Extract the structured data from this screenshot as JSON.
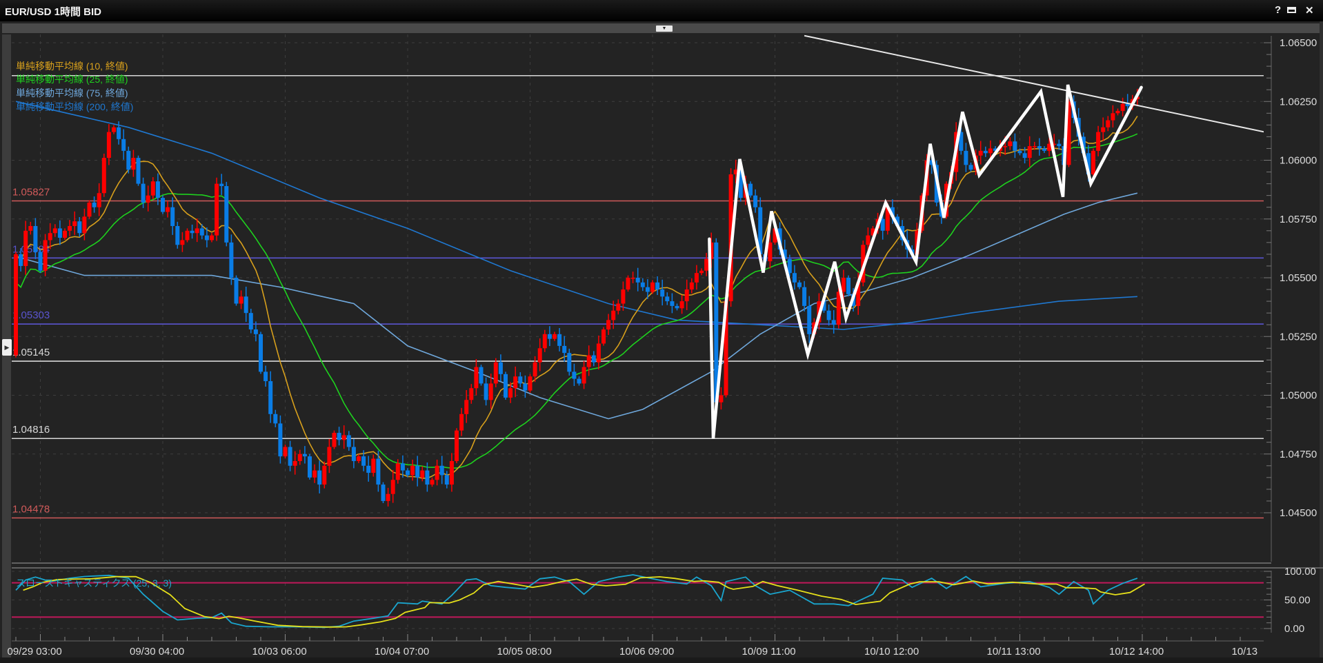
{
  "window": {
    "title": "EUR/USD 1時間 BID",
    "help_label": "?",
    "close_label": "✕",
    "icons": [
      "help-icon",
      "maximize-icon",
      "close-icon",
      "collapse-arrow-icon",
      "expand-arrow-icon"
    ]
  },
  "legend": [
    {
      "label": "単純移動平均線 (10, 終値)",
      "color": "#d8a01c"
    },
    {
      "label": "単純移動平均線 (25, 終値)",
      "color": "#1ed21e"
    },
    {
      "label": "単純移動平均線 (75, 終値)",
      "color": "#6fa8dc"
    },
    {
      "label": "単純移動平均線 (200, 終値)",
      "color": "#1f78d1"
    }
  ],
  "stochastic": {
    "label": "スローストキャスティクス (25, 3, 3)",
    "k_color": "#1aa6cf",
    "d_color": "#e6e01a",
    "level_color": "#c0195a",
    "levels": [
      80,
      20
    ],
    "ylim": [
      0,
      100
    ],
    "yticks": [
      "100.00",
      "50.00",
      "0.00"
    ],
    "k": [
      [
        0,
        67
      ],
      [
        2,
        85
      ],
      [
        4,
        90
      ],
      [
        7,
        82
      ],
      [
        11,
        88
      ],
      [
        14,
        91
      ],
      [
        19,
        93
      ],
      [
        23,
        88
      ],
      [
        26,
        60
      ],
      [
        30,
        30
      ],
      [
        33,
        15
      ],
      [
        37,
        18
      ],
      [
        40,
        19
      ],
      [
        42,
        27
      ],
      [
        44,
        10
      ],
      [
        47,
        4
      ],
      [
        52,
        3
      ],
      [
        57,
        3
      ],
      [
        63,
        2
      ],
      [
        66,
        4
      ],
      [
        69,
        13
      ],
      [
        73,
        18
      ],
      [
        76,
        22
      ],
      [
        78,
        45
      ],
      [
        82,
        43
      ],
      [
        83,
        48
      ],
      [
        87,
        43
      ],
      [
        89,
        58
      ],
      [
        92,
        85
      ],
      [
        94,
        87
      ],
      [
        97,
        75
      ],
      [
        100,
        72
      ],
      [
        104,
        69
      ],
      [
        107,
        87
      ],
      [
        110,
        90
      ],
      [
        113,
        82
      ],
      [
        116,
        60
      ],
      [
        119,
        82
      ],
      [
        123,
        90
      ],
      [
        126,
        94
      ],
      [
        130,
        87
      ],
      [
        133,
        82
      ],
      [
        137,
        78
      ],
      [
        139,
        90
      ],
      [
        142,
        75
      ],
      [
        144,
        49
      ],
      [
        145,
        82
      ],
      [
        149,
        90
      ],
      [
        151,
        75
      ],
      [
        154,
        60
      ],
      [
        158,
        67
      ],
      [
        163,
        43
      ],
      [
        167,
        43
      ],
      [
        170,
        40
      ],
      [
        175,
        60
      ],
      [
        177,
        88
      ],
      [
        181,
        85
      ],
      [
        183,
        72
      ],
      [
        187,
        88
      ],
      [
        190,
        70
      ],
      [
        194,
        91
      ],
      [
        197,
        73
      ],
      [
        202,
        79
      ],
      [
        207,
        82
      ],
      [
        211,
        72
      ],
      [
        213,
        60
      ],
      [
        216,
        82
      ],
      [
        219,
        67
      ],
      [
        220,
        43
      ],
      [
        223,
        67
      ],
      [
        226,
        79
      ],
      [
        229,
        88
      ]
    ]
  },
  "chart_data": {
    "type": "candlestick",
    "title": "EUR/USD 1時間 BID",
    "up_color": "#ff0000",
    "down_color": "#0a7de6",
    "ylim": [
      1.045,
      1.065
    ],
    "yticks": [
      "1.06500",
      "1.06250",
      "1.06000",
      "1.05750",
      "1.05500",
      "1.05250",
      "1.05000",
      "1.04750",
      "1.04500"
    ],
    "xticks": [
      {
        "bar": 5,
        "label": "09/29 03:00"
      },
      {
        "bar": 30,
        "label": "09/30 04:00"
      },
      {
        "bar": 55,
        "label": "10/03 06:00"
      },
      {
        "bar": 80,
        "label": "10/04 07:00"
      },
      {
        "bar": 105,
        "label": "10/05 08:00"
      },
      {
        "bar": 130,
        "label": "10/06 09:00"
      },
      {
        "bar": 155,
        "label": "10/09 11:00"
      },
      {
        "bar": 180,
        "label": "10/10 12:00"
      },
      {
        "bar": 205,
        "label": "10/11 13:00"
      },
      {
        "bar": 230,
        "label": "10/12 14:00"
      },
      {
        "bar": 255,
        "label": "10/13"
      }
    ],
    "first_open": 1.0517,
    "closes": [
      1.056,
      1.0555,
      1.057,
      1.0572,
      1.0561,
      1.0553,
      1.0566,
      1.0569,
      1.0571,
      1.0567,
      1.057,
      1.0572,
      1.0574,
      1.0569,
      1.0576,
      1.0582,
      1.058,
      1.0586,
      1.0601,
      1.0612,
      1.0614,
      1.0609,
      1.0604,
      1.0596,
      1.0601,
      1.059,
      1.0582,
      1.0585,
      1.0591,
      1.0584,
      1.0578,
      1.058,
      1.0572,
      1.0564,
      1.0566,
      1.057,
      1.0569,
      1.0571,
      1.0568,
      1.0566,
      1.0568,
      1.059,
      1.0589,
      1.0565,
      1.055,
      1.0539,
      1.0542,
      1.0535,
      1.0528,
      1.0526,
      1.051,
      1.0506,
      1.0492,
      1.0488,
      1.0474,
      1.0478,
      1.047,
      1.0472,
      1.0475,
      1.0474,
      1.0465,
      1.0468,
      1.0462,
      1.047,
      1.0478,
      1.0484,
      1.0481,
      1.0483,
      1.0478,
      1.0472,
      1.0474,
      1.047,
      1.0467,
      1.0473,
      1.0462,
      1.0455,
      1.0458,
      1.0464,
      1.0471,
      1.0468,
      1.0466,
      1.047,
      1.0465,
      1.0468,
      1.0462,
      1.0464,
      1.047,
      1.0466,
      1.0462,
      1.0472,
      1.0485,
      1.0492,
      1.0498,
      1.0503,
      1.0512,
      1.0505,
      1.0498,
      1.0505,
      1.0514,
      1.0509,
      1.0499,
      1.0503,
      1.0508,
      1.0505,
      1.0502,
      1.0508,
      1.0514,
      1.052,
      1.0526,
      1.0524,
      1.0526,
      1.0521,
      1.0518,
      1.051,
      1.0507,
      1.0505,
      1.0512,
      1.0517,
      1.0514,
      1.0522,
      1.0528,
      1.0532,
      1.0536,
      1.0539,
      1.0545,
      1.055,
      1.055,
      1.0548,
      1.0546,
      1.0544,
      1.0548,
      1.0545,
      1.0542,
      1.054,
      1.0538,
      1.0537,
      1.054,
      1.0545,
      1.0548,
      1.0552,
      1.0553,
      1.0558,
      1.0565,
      1.0497,
      1.05,
      1.054,
      1.0594,
      1.0596,
      1.0584,
      1.059,
      1.0585,
      1.058,
      1.056,
      1.0557,
      1.0565,
      1.0571,
      1.0562,
      1.0558,
      1.0552,
      1.0548,
      1.0546,
      1.0538,
      1.0526,
      1.0531,
      1.054,
      1.0536,
      1.0532,
      1.053,
      1.0544,
      1.055,
      1.0543,
      1.0538,
      1.0548,
      1.0564,
      1.0568,
      1.0571,
      1.0575,
      1.057,
      1.058,
      1.0576,
      1.0572,
      1.0566,
      1.0562,
      1.056,
      1.057,
      1.0585,
      1.06,
      1.0598,
      1.0582,
      1.0576,
      1.059,
      1.0595,
      1.0612,
      1.0604,
      1.0598,
      1.0596,
      1.0602,
      1.0604,
      1.0603,
      1.0605,
      1.0604,
      1.0606,
      1.0606,
      1.0608,
      1.0604,
      1.0603,
      1.0601,
      1.0606,
      1.0606,
      1.0605,
      1.0604,
      1.0607,
      1.0607,
      1.0606,
      1.0598,
      1.0625,
      1.0618,
      1.061,
      1.0603,
      1.0594,
      1.0604,
      1.0612,
      1.0614,
      1.0617,
      1.062,
      1.0621,
      1.0624,
      1.0623,
      1.0626,
      1.0627
    ],
    "ma75": [
      [
        0,
        1.0559
      ],
      [
        14,
        1.0551
      ],
      [
        40,
        1.0551
      ],
      [
        54,
        1.0546
      ],
      [
        69,
        1.0539
      ],
      [
        80,
        1.0521
      ],
      [
        94,
        1.051
      ],
      [
        107,
        1.0499
      ],
      [
        121,
        1.049
      ],
      [
        128,
        1.0494
      ],
      [
        142,
        1.051
      ],
      [
        152,
        1.0526
      ],
      [
        163,
        1.0539
      ],
      [
        173,
        1.0544
      ],
      [
        183,
        1.055
      ],
      [
        194,
        1.0559
      ],
      [
        204,
        1.0568
      ],
      [
        214,
        1.0577
      ],
      [
        221,
        1.0582
      ],
      [
        229,
        1.0586
      ]
    ],
    "ma200": [
      [
        0,
        1.0625
      ],
      [
        23,
        1.0614
      ],
      [
        40,
        1.0603
      ],
      [
        62,
        1.0584
      ],
      [
        80,
        1.0571
      ],
      [
        101,
        1.0553
      ],
      [
        121,
        1.0539
      ],
      [
        135,
        1.0532
      ],
      [
        152,
        1.053
      ],
      [
        169,
        1.0528
      ],
      [
        183,
        1.0531
      ],
      [
        195,
        1.0535
      ],
      [
        213,
        1.054
      ],
      [
        229,
        1.0542
      ]
    ],
    "levels": [
      {
        "price": 1.0636,
        "label": "",
        "color": "#d8d8d8"
      },
      {
        "price": 1.05827,
        "label": "1.05827",
        "color": "#d05a5a"
      },
      {
        "price": 1.05584,
        "label": "1.05584",
        "color": "#5a55d0"
      },
      {
        "price": 1.05303,
        "label": "1.05303",
        "color": "#5a55d0"
      },
      {
        "price": 1.05145,
        "label": "1.05145",
        "color": "#d8d8d8"
      },
      {
        "price": 1.04816,
        "label": "1.04816",
        "color": "#d8d8d8"
      },
      {
        "price": 1.04478,
        "label": "1.04478",
        "color": "#d05a5a"
      }
    ],
    "trendline": [
      [
        161,
        1.0653
      ],
      [
        255,
        1.0612
      ]
    ],
    "zigzag": [
      [
        141.6,
        1.05665
      ],
      [
        142.4,
        1.04816
      ],
      [
        147.8,
        1.06005
      ],
      [
        152.6,
        1.05522
      ],
      [
        154.3,
        1.05783
      ],
      [
        161.7,
        1.05174
      ],
      [
        167.2,
        1.05568
      ],
      [
        169.5,
        1.05328
      ],
      [
        177.6,
        1.05819
      ],
      [
        183.8,
        1.05568
      ],
      [
        186.7,
        1.0607
      ],
      [
        189.5,
        1.05755
      ],
      [
        193.3,
        1.06206
      ],
      [
        196.7,
        1.05937
      ],
      [
        209.3,
        1.06292
      ],
      [
        213.8,
        1.05844
      ],
      [
        214.8,
        1.06321
      ],
      [
        219.5,
        1.05901
      ],
      [
        229.8,
        1.0631
      ]
    ],
    "grid": true
  }
}
